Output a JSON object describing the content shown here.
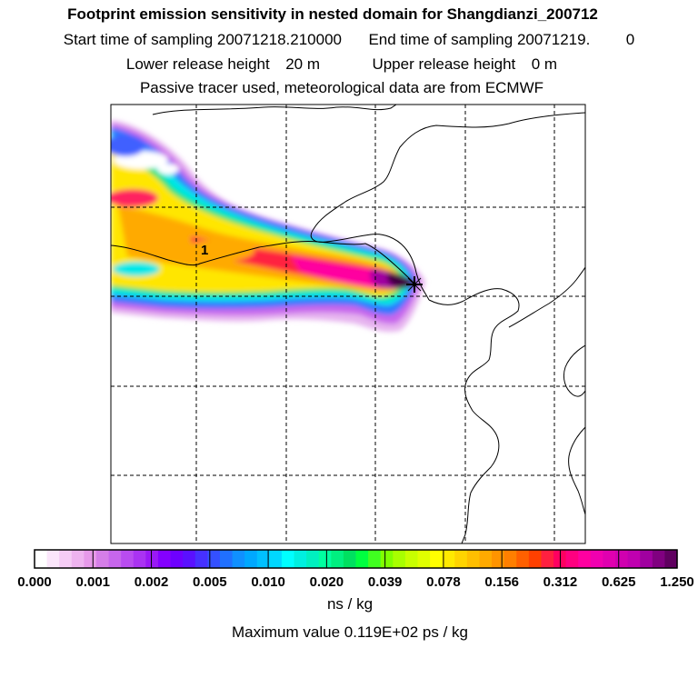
{
  "header": {
    "title": "Footprint emission sensitivity in nested domain for Shangdianzi_200712",
    "start_label": "Start time of sampling",
    "start_value": "20071218.210000",
    "end_label": "End time of sampling",
    "end_value": "20071219.",
    "end_suffix": "0",
    "lower_label": "Lower release height",
    "lower_value": "20 m",
    "upper_label": "Upper release height",
    "upper_value": "0 m",
    "tracer_note": "Passive tracer used, meteorological data are from ECMWF"
  },
  "map": {
    "marker_label": "1",
    "receptor_symbol": "cross"
  },
  "colorbar": {
    "labels": [
      "0.000",
      "0.001",
      "0.002",
      "0.005",
      "0.010",
      "0.020",
      "0.039",
      "0.078",
      "0.156",
      "0.312",
      "0.625",
      "1.250"
    ],
    "colors": [
      "#ffffff",
      "#fbe6fb",
      "#f5ccf5",
      "#eeb3ef",
      "#e699e9",
      "#d57ee8",
      "#c766ec",
      "#b94cf0",
      "#aa33f2",
      "#9a19f5",
      "#8400ff",
      "#6e00ff",
      "#5a10ff",
      "#4630ff",
      "#3450ff",
      "#2070ff",
      "#1090ff",
      "#00a8ff",
      "#00c0ff",
      "#00d8ff",
      "#00ffff",
      "#00f0e0",
      "#00f0c0",
      "#00ffa0",
      "#00f080",
      "#00e060",
      "#00ff40",
      "#40ff20",
      "#80ff00",
      "#a8ff00",
      "#c8ff00",
      "#e0ff00",
      "#ffff00",
      "#ffea00",
      "#ffd400",
      "#ffbf00",
      "#ffaa00",
      "#ff9400",
      "#ff7f00",
      "#ff6000",
      "#ff4000",
      "#ff2040",
      "#ff0060",
      "#ff0080",
      "#ff00a0",
      "#f000b0",
      "#e000b0",
      "#d000b0",
      "#c000b0",
      "#a000a0",
      "#800080",
      "#600060"
    ],
    "units": "ns / kg",
    "max_value_text": "Maximum value  0.119E+02 ps / kg"
  }
}
